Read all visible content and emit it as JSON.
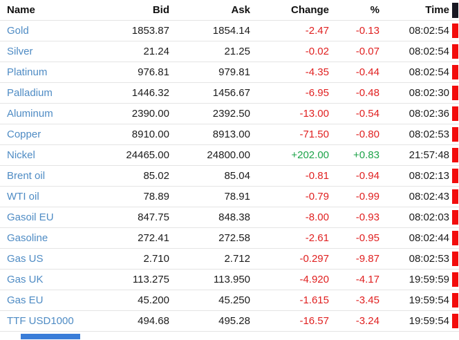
{
  "table": {
    "columns": [
      "Name",
      "Bid",
      "Ask",
      "Change",
      "%",
      "Time"
    ],
    "rows": [
      {
        "name": "Gold",
        "bid": "1853.87",
        "ask": "1854.14",
        "change": "-2.47",
        "pct": "-0.13",
        "time": "08:02:54",
        "trend": "down"
      },
      {
        "name": "Silver",
        "bid": "21.24",
        "ask": "21.25",
        "change": "-0.02",
        "pct": "-0.07",
        "time": "08:02:54",
        "trend": "down"
      },
      {
        "name": "Platinum",
        "bid": "976.81",
        "ask": "979.81",
        "change": "-4.35",
        "pct": "-0.44",
        "time": "08:02:54",
        "trend": "down"
      },
      {
        "name": "Palladium",
        "bid": "1446.32",
        "ask": "1456.67",
        "change": "-6.95",
        "pct": "-0.48",
        "time": "08:02:30",
        "trend": "down"
      },
      {
        "name": "Aluminum",
        "bid": "2390.00",
        "ask": "2392.50",
        "change": "-13.00",
        "pct": "-0.54",
        "time": "08:02:36",
        "trend": "down"
      },
      {
        "name": "Copper",
        "bid": "8910.00",
        "ask": "8913.00",
        "change": "-71.50",
        "pct": "-0.80",
        "time": "08:02:53",
        "trend": "down"
      },
      {
        "name": "Nickel",
        "bid": "24465.00",
        "ask": "24800.00",
        "change": "+202.00",
        "pct": "+0.83",
        "time": "21:57:48",
        "trend": "up"
      },
      {
        "name": "Brent oil",
        "bid": "85.02",
        "ask": "85.04",
        "change": "-0.81",
        "pct": "-0.94",
        "time": "08:02:13",
        "trend": "down"
      },
      {
        "name": "WTI oil",
        "bid": "78.89",
        "ask": "78.91",
        "change": "-0.79",
        "pct": "-0.99",
        "time": "08:02:43",
        "trend": "down"
      },
      {
        "name": "Gasoil EU",
        "bid": "847.75",
        "ask": "848.38",
        "change": "-8.00",
        "pct": "-0.93",
        "time": "08:02:03",
        "trend": "down"
      },
      {
        "name": "Gasoline",
        "bid": "272.41",
        "ask": "272.58",
        "change": "-2.61",
        "pct": "-0.95",
        "time": "08:02:44",
        "trend": "down"
      },
      {
        "name": "Gas US",
        "bid": "2.710",
        "ask": "2.712",
        "change": "-0.297",
        "pct": "-9.87",
        "time": "08:02:53",
        "trend": "down"
      },
      {
        "name": "Gas UK",
        "bid": "113.275",
        "ask": "113.950",
        "change": "-4.920",
        "pct": "-4.17",
        "time": "19:59:59",
        "trend": "down"
      },
      {
        "name": "Gas EU",
        "bid": "45.200",
        "ask": "45.250",
        "change": "-1.615",
        "pct": "-3.45",
        "time": "19:59:54",
        "trend": "down"
      },
      {
        "name": "TTF USD1000",
        "bid": "494.68",
        "ask": "495.28",
        "change": "-16.57",
        "pct": "-3.24",
        "time": "19:59:54",
        "trend": "down"
      }
    ]
  },
  "colors": {
    "name_blue": "#4e8bc4",
    "negative_red": "#e01f1f",
    "positive_green": "#1ca348",
    "marker_red": "#f20c0c",
    "header_marker_dark": "#181822",
    "row_border": "#e4e4e4",
    "text_dark": "#1b1b1b",
    "partial_blue": "#3a7dd8"
  }
}
